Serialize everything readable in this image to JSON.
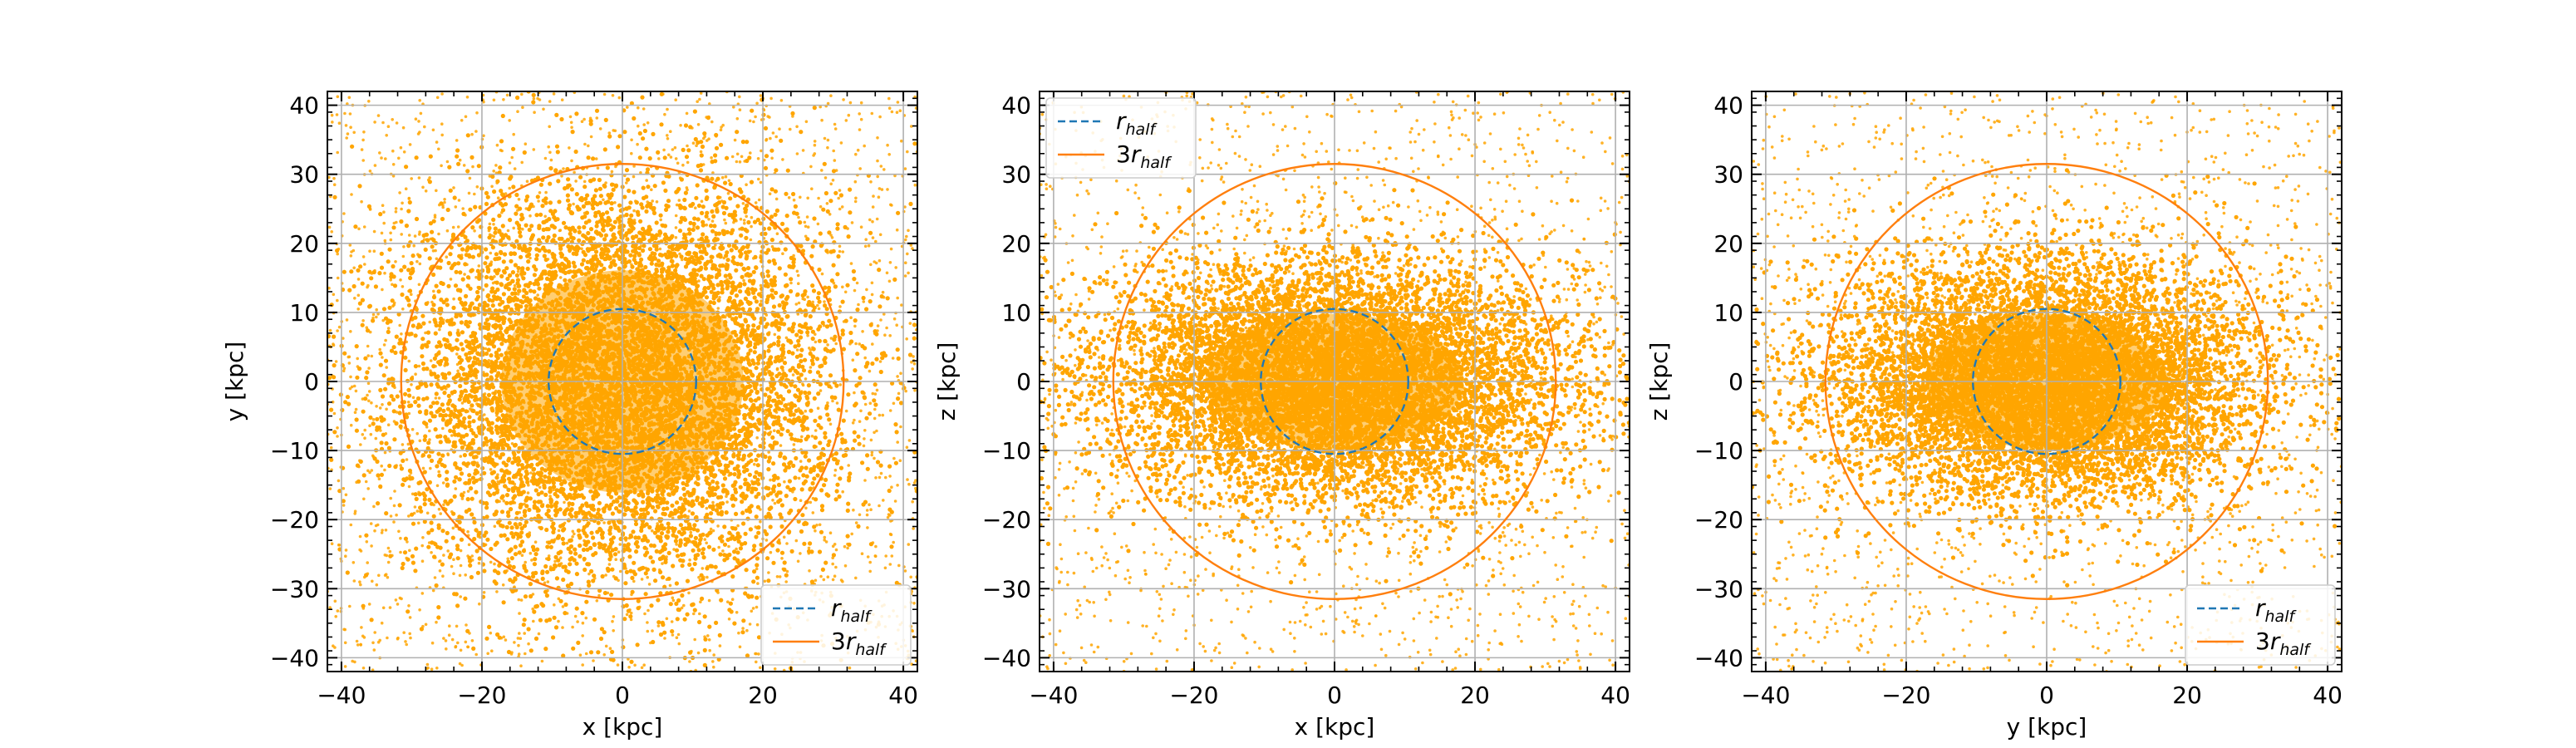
{
  "chart_data": [
    {
      "type": "scatter",
      "xlabel": "x [kpc]",
      "ylabel": "y [kpc]",
      "xlim": [
        -42,
        42
      ],
      "ylim": [
        -42,
        42
      ],
      "xticks": [
        -40,
        -20,
        0,
        20,
        40
      ],
      "yticks": [
        -40,
        -30,
        -20,
        -10,
        0,
        10,
        20,
        30,
        40
      ],
      "grid": true,
      "legend": {
        "placement": "lower-right",
        "entries": [
          {
            "label": "r",
            "sub": "half",
            "style": "dashed",
            "color": "#1f77b4"
          },
          {
            "label": "3r",
            "sub": "half",
            "style": "solid",
            "color": "#ff7f0e"
          }
        ]
      },
      "distribution": {
        "sigma_x": 15,
        "sigma_y": 14,
        "color": "#ffa500",
        "n_core": 9000,
        "n_uniform": 2200
      },
      "circles": [
        {
          "name": "r_half",
          "radius": 10.5,
          "style": "dashed",
          "color": "#1f77b4"
        },
        {
          "name": "3r_half",
          "radius": 31.5,
          "style": "solid",
          "color": "#ff7f0e"
        }
      ]
    },
    {
      "type": "scatter",
      "xlabel": "x [kpc]",
      "ylabel": "z [kpc]",
      "xlim": [
        -42,
        42
      ],
      "ylim": [
        -42,
        42
      ],
      "xticks": [
        -40,
        -20,
        0,
        20,
        40
      ],
      "yticks": [
        -40,
        -30,
        -20,
        -10,
        0,
        10,
        20,
        30,
        40
      ],
      "grid": true,
      "legend": {
        "placement": "upper-left",
        "entries": [
          {
            "label": "r",
            "sub": "half",
            "style": "dashed",
            "color": "#1f77b4"
          },
          {
            "label": "3r",
            "sub": "half",
            "style": "solid",
            "color": "#ff7f0e"
          }
        ]
      },
      "distribution": {
        "sigma_x": 16,
        "sigma_y": 8.5,
        "color": "#ffa500",
        "n_core": 9000,
        "n_uniform": 1800
      },
      "circles": [
        {
          "name": "r_half",
          "radius": 10.5,
          "style": "dashed",
          "color": "#1f77b4"
        },
        {
          "name": "3r_half",
          "radius": 31.5,
          "style": "solid",
          "color": "#ff7f0e"
        }
      ]
    },
    {
      "type": "scatter",
      "xlabel": "y [kpc]",
      "ylabel": "z [kpc]",
      "xlim": [
        -42,
        42
      ],
      "ylim": [
        -42,
        42
      ],
      "xticks": [
        -40,
        -20,
        0,
        20,
        40
      ],
      "yticks": [
        -40,
        -30,
        -20,
        -10,
        0,
        10,
        20,
        30,
        40
      ],
      "grid": true,
      "legend": {
        "placement": "lower-right",
        "entries": [
          {
            "label": "r",
            "sub": "half",
            "style": "dashed",
            "color": "#1f77b4"
          },
          {
            "label": "3r",
            "sub": "half",
            "style": "solid",
            "color": "#ff7f0e"
          }
        ]
      },
      "distribution": {
        "sigma_x": 15,
        "sigma_y": 8.5,
        "color": "#ffa500",
        "n_core": 9000,
        "n_uniform": 1800
      },
      "circles": [
        {
          "name": "r_half",
          "radius": 10.5,
          "style": "dashed",
          "color": "#1f77b4"
        },
        {
          "name": "3r_half",
          "radius": 31.5,
          "style": "solid",
          "color": "#ff7f0e"
        }
      ]
    }
  ]
}
